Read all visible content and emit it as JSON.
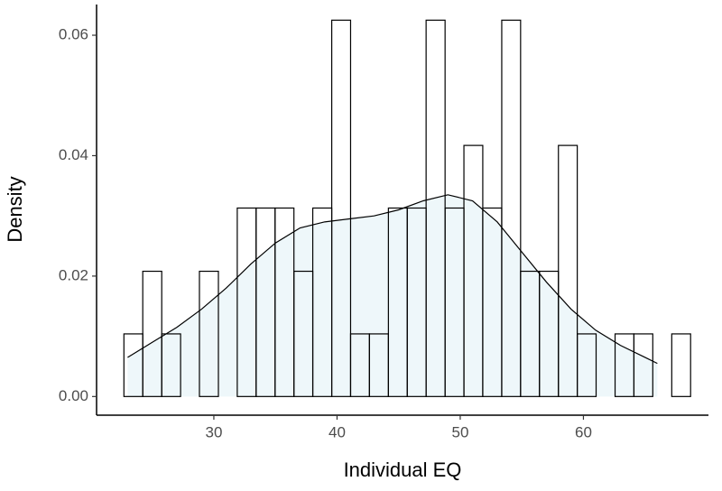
{
  "chart_data": {
    "type": "histogram",
    "xlabel": "Individual EQ",
    "ylabel": "Density",
    "bins": [
      22.7,
      24.23,
      25.77,
      27.3,
      28.83,
      30.37,
      31.9,
      33.43,
      34.97,
      36.5,
      38.03,
      39.57,
      41.1,
      42.63,
      44.17,
      45.7,
      47.23,
      48.77,
      50.3,
      51.83,
      53.37,
      54.9,
      56.43,
      57.97,
      59.5,
      61.03,
      62.57,
      64.1,
      65.63,
      67.17,
      68.7
    ],
    "values": [
      0.0104,
      0.0208,
      0.0104,
      0,
      0.0208,
      0,
      0.0313,
      0.0313,
      0.0313,
      0.0208,
      0.0313,
      0.0625,
      0.0104,
      0.0104,
      0.0313,
      0.0313,
      0.0625,
      0.0313,
      0.0417,
      0.0313,
      0.0625,
      0.0208,
      0.0208,
      0.0417,
      0.0104,
      0,
      0.0104,
      0.0104,
      0,
      0.0104
    ],
    "color": "#ffffff",
    "edgecolor": "#000000",
    "density": {
      "x": [
        23,
        25,
        27,
        29,
        31,
        33,
        35,
        37,
        39,
        41,
        43,
        45,
        47,
        49,
        51,
        53,
        55,
        57,
        59,
        61,
        63,
        65,
        66
      ],
      "values": [
        0.0065,
        0.009,
        0.0115,
        0.0145,
        0.018,
        0.022,
        0.0255,
        0.028,
        0.029,
        0.0295,
        0.03,
        0.031,
        0.0325,
        0.0335,
        0.0325,
        0.029,
        0.024,
        0.019,
        0.0145,
        0.011,
        0.0085,
        0.0065,
        0.0055
      ],
      "color": "#000000",
      "fill": "#eef7fa"
    },
    "xlim": [
      20.48,
      70.15
    ],
    "ylim": [
      -0.0031,
      0.0651
    ],
    "xticks": [
      30,
      40,
      50,
      60
    ],
    "yticks": [
      {
        "value": 0,
        "label": "0.00"
      },
      {
        "value": 0.02,
        "label": "0.02"
      },
      {
        "value": 0.04,
        "label": "0.04"
      },
      {
        "value": 0.06,
        "label": "0.06"
      }
    ],
    "grid": false
  }
}
